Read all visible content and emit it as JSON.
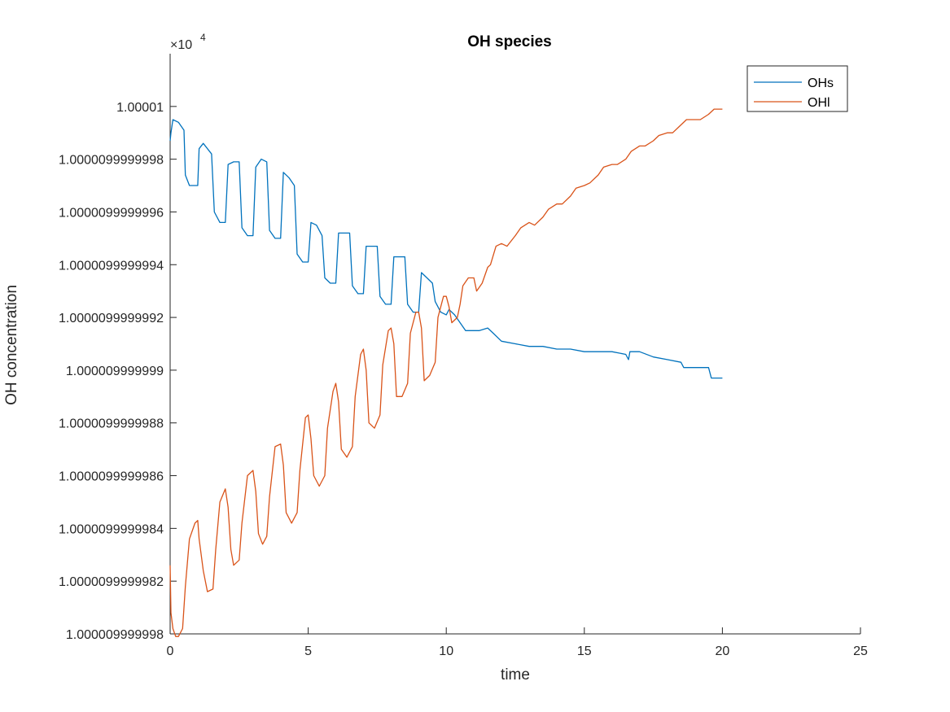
{
  "chart_data": {
    "type": "line",
    "title": "OH species",
    "xlabel": "time",
    "ylabel": "OH concentration",
    "xlim": [
      0,
      25
    ],
    "ylim": [
      -0.1,
      1.0
    ],
    "x_ticks": [
      "0",
      "5",
      "10",
      "15",
      "20",
      "25"
    ],
    "x_tick_values": [
      0,
      5,
      10,
      15,
      20,
      25
    ],
    "y_ticks": [
      "1.00001",
      "1.0000099999998",
      "1.0000099999996",
      "1.0000099999994",
      "1.0000099999992",
      "1.000009999999",
      "1.0000099999988",
      "1.0000099999986",
      "1.0000099999984",
      "1.0000099999982",
      "1.000009999998"
    ],
    "y_tick_values": [
      0.9,
      0.8,
      0.7,
      0.6,
      0.5,
      0.4,
      0.3,
      0.2,
      0.1,
      0.0,
      -0.1
    ],
    "y_multiplier": {
      "base": "×10",
      "exponent": "4"
    },
    "grid": false,
    "legend_position": "top-right",
    "series": [
      {
        "name": "OHs",
        "color": "#0072BD",
        "points": [
          [
            0,
            0.835
          ],
          [
            0.03,
            0.85
          ],
          [
            0.1,
            0.875
          ],
          [
            0.3,
            0.87
          ],
          [
            0.5,
            0.855
          ],
          [
            0.55,
            0.77
          ],
          [
            0.7,
            0.75
          ],
          [
            1.0,
            0.75
          ],
          [
            1.05,
            0.82
          ],
          [
            1.2,
            0.83
          ],
          [
            1.5,
            0.81
          ],
          [
            1.6,
            0.7
          ],
          [
            1.8,
            0.68
          ],
          [
            2.0,
            0.68
          ],
          [
            2.1,
            0.79
          ],
          [
            2.3,
            0.795
          ],
          [
            2.5,
            0.795
          ],
          [
            2.6,
            0.67
          ],
          [
            2.8,
            0.655
          ],
          [
            3.0,
            0.655
          ],
          [
            3.1,
            0.785
          ],
          [
            3.3,
            0.8
          ],
          [
            3.5,
            0.795
          ],
          [
            3.6,
            0.665
          ],
          [
            3.8,
            0.65
          ],
          [
            4.0,
            0.65
          ],
          [
            4.1,
            0.775
          ],
          [
            4.3,
            0.765
          ],
          [
            4.5,
            0.75
          ],
          [
            4.6,
            0.62
          ],
          [
            4.8,
            0.605
          ],
          [
            5.0,
            0.605
          ],
          [
            5.1,
            0.68
          ],
          [
            5.3,
            0.675
          ],
          [
            5.5,
            0.655
          ],
          [
            5.6,
            0.575
          ],
          [
            5.8,
            0.565
          ],
          [
            6.0,
            0.565
          ],
          [
            6.1,
            0.66
          ],
          [
            6.3,
            0.66
          ],
          [
            6.5,
            0.66
          ],
          [
            6.6,
            0.56
          ],
          [
            6.8,
            0.545
          ],
          [
            7.0,
            0.545
          ],
          [
            7.1,
            0.635
          ],
          [
            7.3,
            0.635
          ],
          [
            7.5,
            0.635
          ],
          [
            7.6,
            0.54
          ],
          [
            7.8,
            0.525
          ],
          [
            8.0,
            0.525
          ],
          [
            8.1,
            0.615
          ],
          [
            8.3,
            0.615
          ],
          [
            8.5,
            0.615
          ],
          [
            8.6,
            0.525
          ],
          [
            8.8,
            0.51
          ],
          [
            9.0,
            0.51
          ],
          [
            9.1,
            0.585
          ],
          [
            9.3,
            0.575
          ],
          [
            9.5,
            0.565
          ],
          [
            9.6,
            0.53
          ],
          [
            9.8,
            0.51
          ],
          [
            10.0,
            0.505
          ],
          [
            10.1,
            0.515
          ],
          [
            10.3,
            0.505
          ],
          [
            10.5,
            0.49
          ],
          [
            10.7,
            0.475
          ],
          [
            11.0,
            0.475
          ],
          [
            11.2,
            0.475
          ],
          [
            11.5,
            0.48
          ],
          [
            11.7,
            0.47
          ],
          [
            12.0,
            0.455
          ],
          [
            12.5,
            0.45
          ],
          [
            13.0,
            0.445
          ],
          [
            13.5,
            0.445
          ],
          [
            14.0,
            0.44
          ],
          [
            14.5,
            0.44
          ],
          [
            15.0,
            0.435
          ],
          [
            15.5,
            0.435
          ],
          [
            16.0,
            0.435
          ],
          [
            16.5,
            0.43
          ],
          [
            16.6,
            0.42
          ],
          [
            16.65,
            0.435
          ],
          [
            17.0,
            0.435
          ],
          [
            17.5,
            0.425
          ],
          [
            18.0,
            0.42
          ],
          [
            18.5,
            0.415
          ],
          [
            18.6,
            0.405
          ],
          [
            19.0,
            0.405
          ],
          [
            19.5,
            0.405
          ],
          [
            19.6,
            0.385
          ],
          [
            20.0,
            0.385
          ]
        ]
      },
      {
        "name": "OHl",
        "color": "#D95319",
        "points": [
          [
            0,
            0.03
          ],
          [
            0.03,
            -0.06
          ],
          [
            0.1,
            -0.09
          ],
          [
            0.2,
            -0.105
          ],
          [
            0.3,
            -0.105
          ],
          [
            0.45,
            -0.09
          ],
          [
            0.55,
            -0.01
          ],
          [
            0.7,
            0.08
          ],
          [
            0.9,
            0.11
          ],
          [
            1.0,
            0.115
          ],
          [
            1.05,
            0.08
          ],
          [
            1.2,
            0.02
          ],
          [
            1.35,
            -0.02
          ],
          [
            1.55,
            -0.015
          ],
          [
            1.65,
            0.06
          ],
          [
            1.8,
            0.15
          ],
          [
            2.0,
            0.175
          ],
          [
            2.1,
            0.14
          ],
          [
            2.2,
            0.06
          ],
          [
            2.3,
            0.03
          ],
          [
            2.5,
            0.04
          ],
          [
            2.6,
            0.11
          ],
          [
            2.8,
            0.2
          ],
          [
            3.0,
            0.21
          ],
          [
            3.1,
            0.17
          ],
          [
            3.2,
            0.09
          ],
          [
            3.35,
            0.07
          ],
          [
            3.5,
            0.085
          ],
          [
            3.6,
            0.16
          ],
          [
            3.8,
            0.255
          ],
          [
            4.0,
            0.26
          ],
          [
            4.1,
            0.22
          ],
          [
            4.2,
            0.13
          ],
          [
            4.4,
            0.11
          ],
          [
            4.6,
            0.13
          ],
          [
            4.7,
            0.21
          ],
          [
            4.9,
            0.31
          ],
          [
            5.0,
            0.315
          ],
          [
            5.1,
            0.27
          ],
          [
            5.2,
            0.2
          ],
          [
            5.4,
            0.18
          ],
          [
            5.6,
            0.2
          ],
          [
            5.7,
            0.29
          ],
          [
            5.9,
            0.36
          ],
          [
            6.0,
            0.375
          ],
          [
            6.1,
            0.34
          ],
          [
            6.2,
            0.25
          ],
          [
            6.4,
            0.235
          ],
          [
            6.6,
            0.255
          ],
          [
            6.7,
            0.35
          ],
          [
            6.9,
            0.43
          ],
          [
            7.0,
            0.44
          ],
          [
            7.1,
            0.4
          ],
          [
            7.2,
            0.3
          ],
          [
            7.4,
            0.29
          ],
          [
            7.6,
            0.315
          ],
          [
            7.7,
            0.41
          ],
          [
            7.9,
            0.475
          ],
          [
            8.0,
            0.48
          ],
          [
            8.1,
            0.45
          ],
          [
            8.2,
            0.35
          ],
          [
            8.4,
            0.35
          ],
          [
            8.6,
            0.375
          ],
          [
            8.7,
            0.47
          ],
          [
            8.9,
            0.51
          ],
          [
            9.0,
            0.51
          ],
          [
            9.1,
            0.48
          ],
          [
            9.2,
            0.38
          ],
          [
            9.4,
            0.39
          ],
          [
            9.6,
            0.415
          ],
          [
            9.7,
            0.5
          ],
          [
            9.9,
            0.54
          ],
          [
            10.0,
            0.54
          ],
          [
            10.1,
            0.52
          ],
          [
            10.2,
            0.49
          ],
          [
            10.4,
            0.5
          ],
          [
            10.5,
            0.525
          ],
          [
            10.6,
            0.56
          ],
          [
            10.8,
            0.575
          ],
          [
            11.0,
            0.575
          ],
          [
            11.1,
            0.55
          ],
          [
            11.3,
            0.565
          ],
          [
            11.5,
            0.595
          ],
          [
            11.6,
            0.6
          ],
          [
            11.8,
            0.635
          ],
          [
            12.0,
            0.64
          ],
          [
            12.2,
            0.635
          ],
          [
            12.5,
            0.655
          ],
          [
            12.7,
            0.67
          ],
          [
            13.0,
            0.68
          ],
          [
            13.2,
            0.675
          ],
          [
            13.5,
            0.69
          ],
          [
            13.7,
            0.705
          ],
          [
            14.0,
            0.715
          ],
          [
            14.2,
            0.715
          ],
          [
            14.5,
            0.73
          ],
          [
            14.7,
            0.745
          ],
          [
            15.0,
            0.75
          ],
          [
            15.2,
            0.755
          ],
          [
            15.5,
            0.77
          ],
          [
            15.7,
            0.785
          ],
          [
            16.0,
            0.79
          ],
          [
            16.2,
            0.79
          ],
          [
            16.5,
            0.8
          ],
          [
            16.7,
            0.815
          ],
          [
            17.0,
            0.825
          ],
          [
            17.2,
            0.825
          ],
          [
            17.5,
            0.835
          ],
          [
            17.7,
            0.845
          ],
          [
            18.0,
            0.85
          ],
          [
            18.2,
            0.85
          ],
          [
            18.5,
            0.865
          ],
          [
            18.7,
            0.875
          ],
          [
            19.0,
            0.875
          ],
          [
            19.2,
            0.875
          ],
          [
            19.5,
            0.885
          ],
          [
            19.7,
            0.895
          ],
          [
            20.0,
            0.895
          ]
        ]
      }
    ]
  }
}
